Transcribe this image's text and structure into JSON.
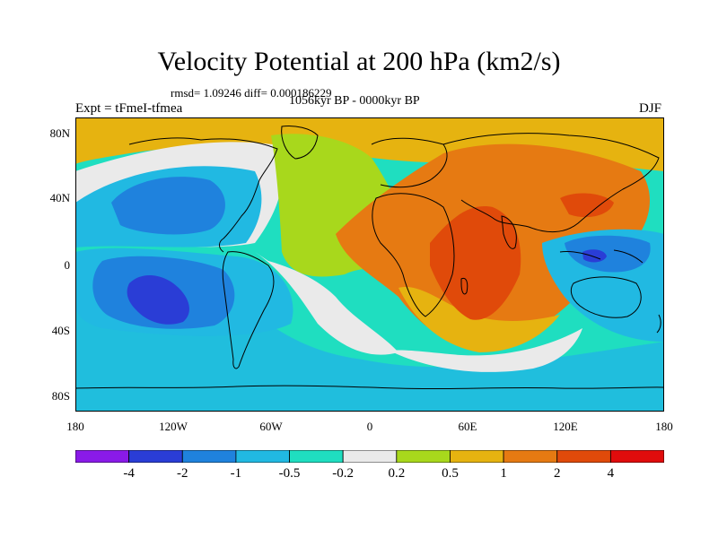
{
  "title": "Velocity Potential at 200 hPa (km2/s)",
  "stats": "rmsd= 1.09246 diff= 0.000186229",
  "period": "1056kyr BP - 0000kyr BP",
  "experiment": "Expt = tFmeI-tfmea",
  "season": "DJF",
  "lat_labels": [
    "80N",
    "40N",
    "0",
    "40S",
    "80S"
  ],
  "lon_labels": [
    "180",
    "120W",
    "60W",
    "0",
    "60E",
    "120E",
    "180"
  ],
  "colorbar": {
    "labels": [
      "-4",
      "-2",
      "-1",
      "-0.5",
      "-0.2",
      "0.2",
      "0.5",
      "1",
      "2",
      "4"
    ],
    "colors": [
      "#8a1ae8",
      "#2a3dd6",
      "#1f82dd",
      "#21b9e2",
      "#1fdec0",
      "#eaeaea",
      "#a8d81c",
      "#e6b310",
      "#e67a12",
      "#e04a0a",
      "#e00c0c"
    ]
  }
}
